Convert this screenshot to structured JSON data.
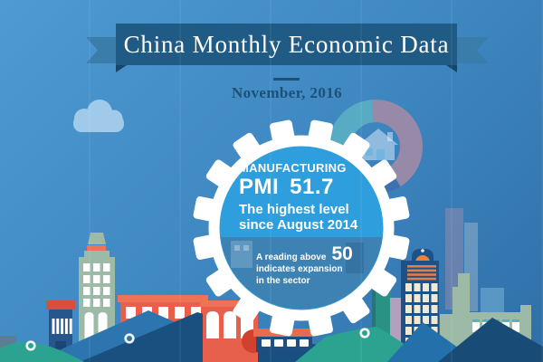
{
  "infographic": {
    "title": "China Monthly Economic Data",
    "date": "November, 2016",
    "gear": {
      "category_label": "MANUFACTURING",
      "metric_label": "PMI",
      "metric_value": "51.7",
      "highlight_line1": "The highest level",
      "highlight_line2": "since August 2014",
      "note_prefix": "A reading above",
      "note_threshold": "50",
      "note_line2": "indicates expansion",
      "note_line3": "in the sector"
    }
  },
  "donut_chart": {
    "type": "pie",
    "description": "decorative donut ring behind gear, no labels shown",
    "center_icon": "house-icon",
    "segments": [
      {
        "name": "mauve",
        "color": "#a18ba6",
        "start_deg": 355,
        "end_deg": 508
      },
      {
        "name": "steel-blue",
        "color": "#4070ab",
        "start_deg": 148,
        "end_deg": 180
      },
      {
        "name": "purple",
        "color": "#8e5b97",
        "start_deg": 180,
        "end_deg": 232
      },
      {
        "name": "teal",
        "color": "#5ab1c4",
        "start_deg": 232,
        "end_deg": 355
      }
    ]
  },
  "palette": {
    "sky_top": "#4f9ad2",
    "sky_mid": "#3f88c2",
    "sky_bottom": "#2f6fa8",
    "banner_band": "#205b85",
    "banner_tail": "#3a7dab",
    "banner_fold": "#14466b",
    "date_text": "#1d5078",
    "gear_face": "#2f9edc",
    "gear_face_lower": "#3e82b3",
    "gear_ring": "#ffffff",
    "red": "#e7604c",
    "red_light": "#ee7257",
    "red_dark": "#d2402e",
    "navy": "#1d5286",
    "navy_mid": "#27568c",
    "sage": "#9cbaa5",
    "teal": "#2a9185",
    "mauve": "#b3a0bd",
    "cream": "#f0ead4",
    "orange": "#e8823f",
    "hill_teal": "#2ba390",
    "mountain_blue": "#2d75ae",
    "mountain_blue2": "#2470ab",
    "mountain_navy": "#1a5080",
    "mountain_navy2": "#184c77",
    "cloud": "#a5cdec"
  }
}
